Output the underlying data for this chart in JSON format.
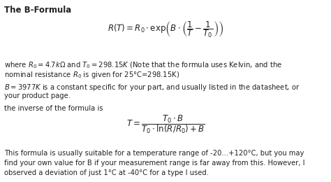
{
  "title": "The B-Formula",
  "bg_color": "#ffffff",
  "text_color": "#222222",
  "figsize": [
    4.74,
    2.6
  ],
  "dpi": 100,
  "formula1": "$R(T) = R_0 \\cdot \\exp\\!\\left( B \\cdot \\left( \\dfrac{1}{T} - \\dfrac{1}{T_0} \\right) \\right)$",
  "line1a": "where $R_0 = 4.7k\\Omega$ and $T_0 = 298.15K$ (Note that the formula uses Kelvin, and the",
  "line1b": "nominal resistance $R_0$ is given for 25°C=298.15K)",
  "line2a": "$B = 3977K$ is a constant specific for your part, and usually listed in the datasheet, or",
  "line2b": "your product page.",
  "line3": "the inverse of the formula is",
  "formula2": "$T = \\dfrac{T_0 \\cdot B}{T_0 \\cdot \\ln(R/R_0) + B}$",
  "line4a": "This formula is usually suitable for a temperature range of -20...+120°C, but you may",
  "line4b": "find your own value for B if your measurement range is far away from this. However, I",
  "line4c": "observed a deviation of just 1°C at -40°C for a type I used."
}
